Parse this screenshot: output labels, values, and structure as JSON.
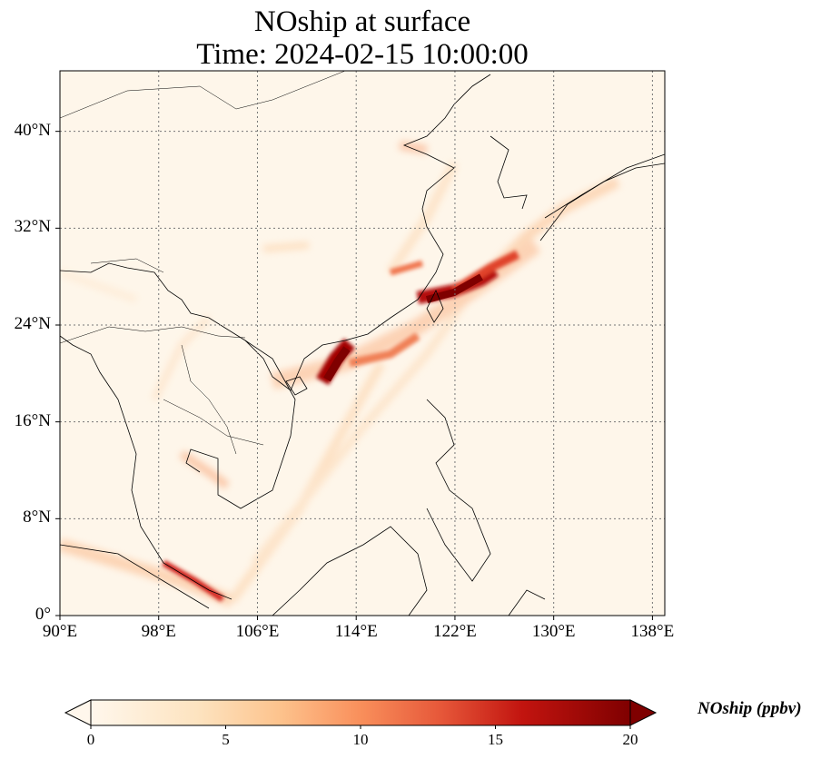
{
  "title": {
    "line1": "NOship at surface",
    "line2": "Time: 2024-02-15 10:00:00"
  },
  "map": {
    "projection": "PlateCarree",
    "lon_range": [
      90,
      139
    ],
    "lat_range": [
      0,
      45
    ],
    "gridlines": "dotted grey",
    "lon_ticks": [
      "90°E",
      "98°E",
      "106°E",
      "114°E",
      "122°E",
      "130°E",
      "138°E"
    ],
    "lon_tick_values": [
      90,
      98,
      106,
      114,
      122,
      130,
      138
    ],
    "lat_ticks": [
      "0°",
      "8°N",
      "16°N",
      "24°N",
      "32°N",
      "40°N"
    ],
    "lat_tick_values": [
      0,
      8,
      16,
      24,
      32,
      40
    ],
    "colormap": "OrRd",
    "background_color": "#fef6ea"
  },
  "colorbar": {
    "label": "NOship (ppbv)",
    "min": 0,
    "max": 20,
    "extend": "both",
    "ticks": [
      "0",
      "5",
      "10",
      "15",
      "20"
    ],
    "tick_values": [
      0,
      5,
      10,
      15,
      20
    ]
  }
}
